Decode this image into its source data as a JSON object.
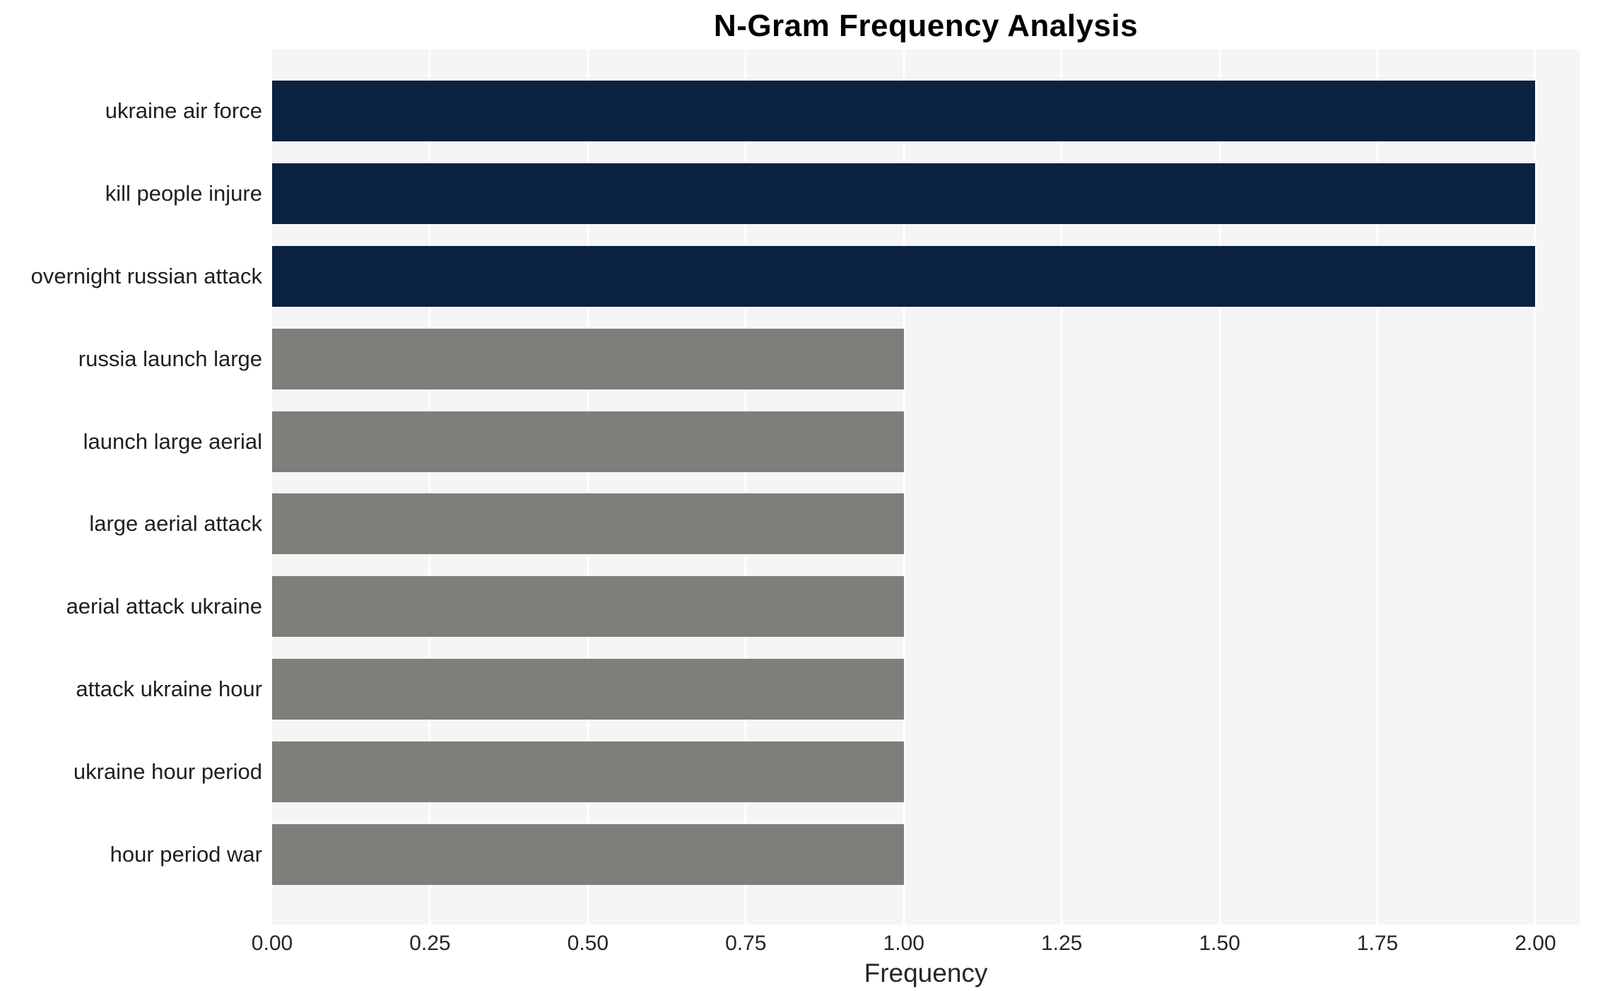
{
  "chart_data": {
    "type": "bar",
    "orientation": "horizontal",
    "title": "N-Gram Frequency Analysis",
    "xlabel": "Frequency",
    "ylabel": "",
    "categories": [
      "ukraine air force",
      "kill people injure",
      "overnight russian attack",
      "russia launch large",
      "launch large aerial",
      "large aerial attack",
      "aerial attack ukraine",
      "attack ukraine hour",
      "ukraine hour period",
      "hour period war"
    ],
    "values": [
      2,
      2,
      2,
      1,
      1,
      1,
      1,
      1,
      1,
      1
    ],
    "bar_colors": [
      "#0b2142",
      "#0b2142",
      "#0b2142",
      "#7f7e7a",
      "#7f7e7a",
      "#7f7e7a",
      "#7f7e7a",
      "#7f7e7a",
      "#7f7e7a",
      "#7f7e7a"
    ],
    "xlim": [
      0,
      2.07
    ],
    "xticks": [
      {
        "label": "0.00",
        "value": 0
      },
      {
        "label": "0.25",
        "value": 0.25
      },
      {
        "label": "0.50",
        "value": 0.5
      },
      {
        "label": "0.75",
        "value": 0.75
      },
      {
        "label": "1.00",
        "value": 1.0
      },
      {
        "label": "1.25",
        "value": 1.25
      },
      {
        "label": "1.50",
        "value": 1.5
      },
      {
        "label": "1.75",
        "value": 1.75
      },
      {
        "label": "2.00",
        "value": 2.0
      }
    ],
    "grid": "vertical-white-gridlines",
    "plot_background": "#f5f5f6",
    "legend": "none"
  }
}
